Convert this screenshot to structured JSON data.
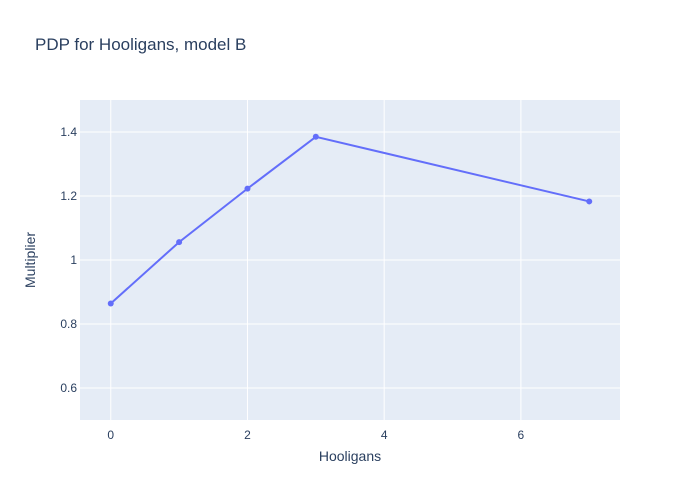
{
  "chart_data": {
    "type": "line",
    "title": "PDP for Hooligans, model B",
    "xlabel": "Hooligans",
    "ylabel": "Multiplier",
    "x": [
      0,
      1,
      2,
      3,
      7
    ],
    "series": [
      {
        "values": [
          0.864,
          1.056,
          1.223,
          1.385,
          1.183
        ]
      }
    ],
    "xlim": [
      -0.45,
      7.45
    ],
    "ylim": [
      0.5,
      1.5
    ],
    "xticks": [
      0,
      2,
      4,
      6
    ],
    "xtick_labels": [
      "0",
      "2",
      "4",
      "6"
    ],
    "yticks": [
      0.6,
      0.8,
      1.0,
      1.2,
      1.4
    ],
    "ytick_labels": [
      "0.6",
      "0.8",
      "1",
      "1.2",
      "1.4"
    ],
    "grid": true,
    "colors": {
      "line": "#636efa",
      "plot_bg": "#e5ecf6",
      "grid": "#ffffff",
      "text": "#2a3f5f"
    }
  }
}
